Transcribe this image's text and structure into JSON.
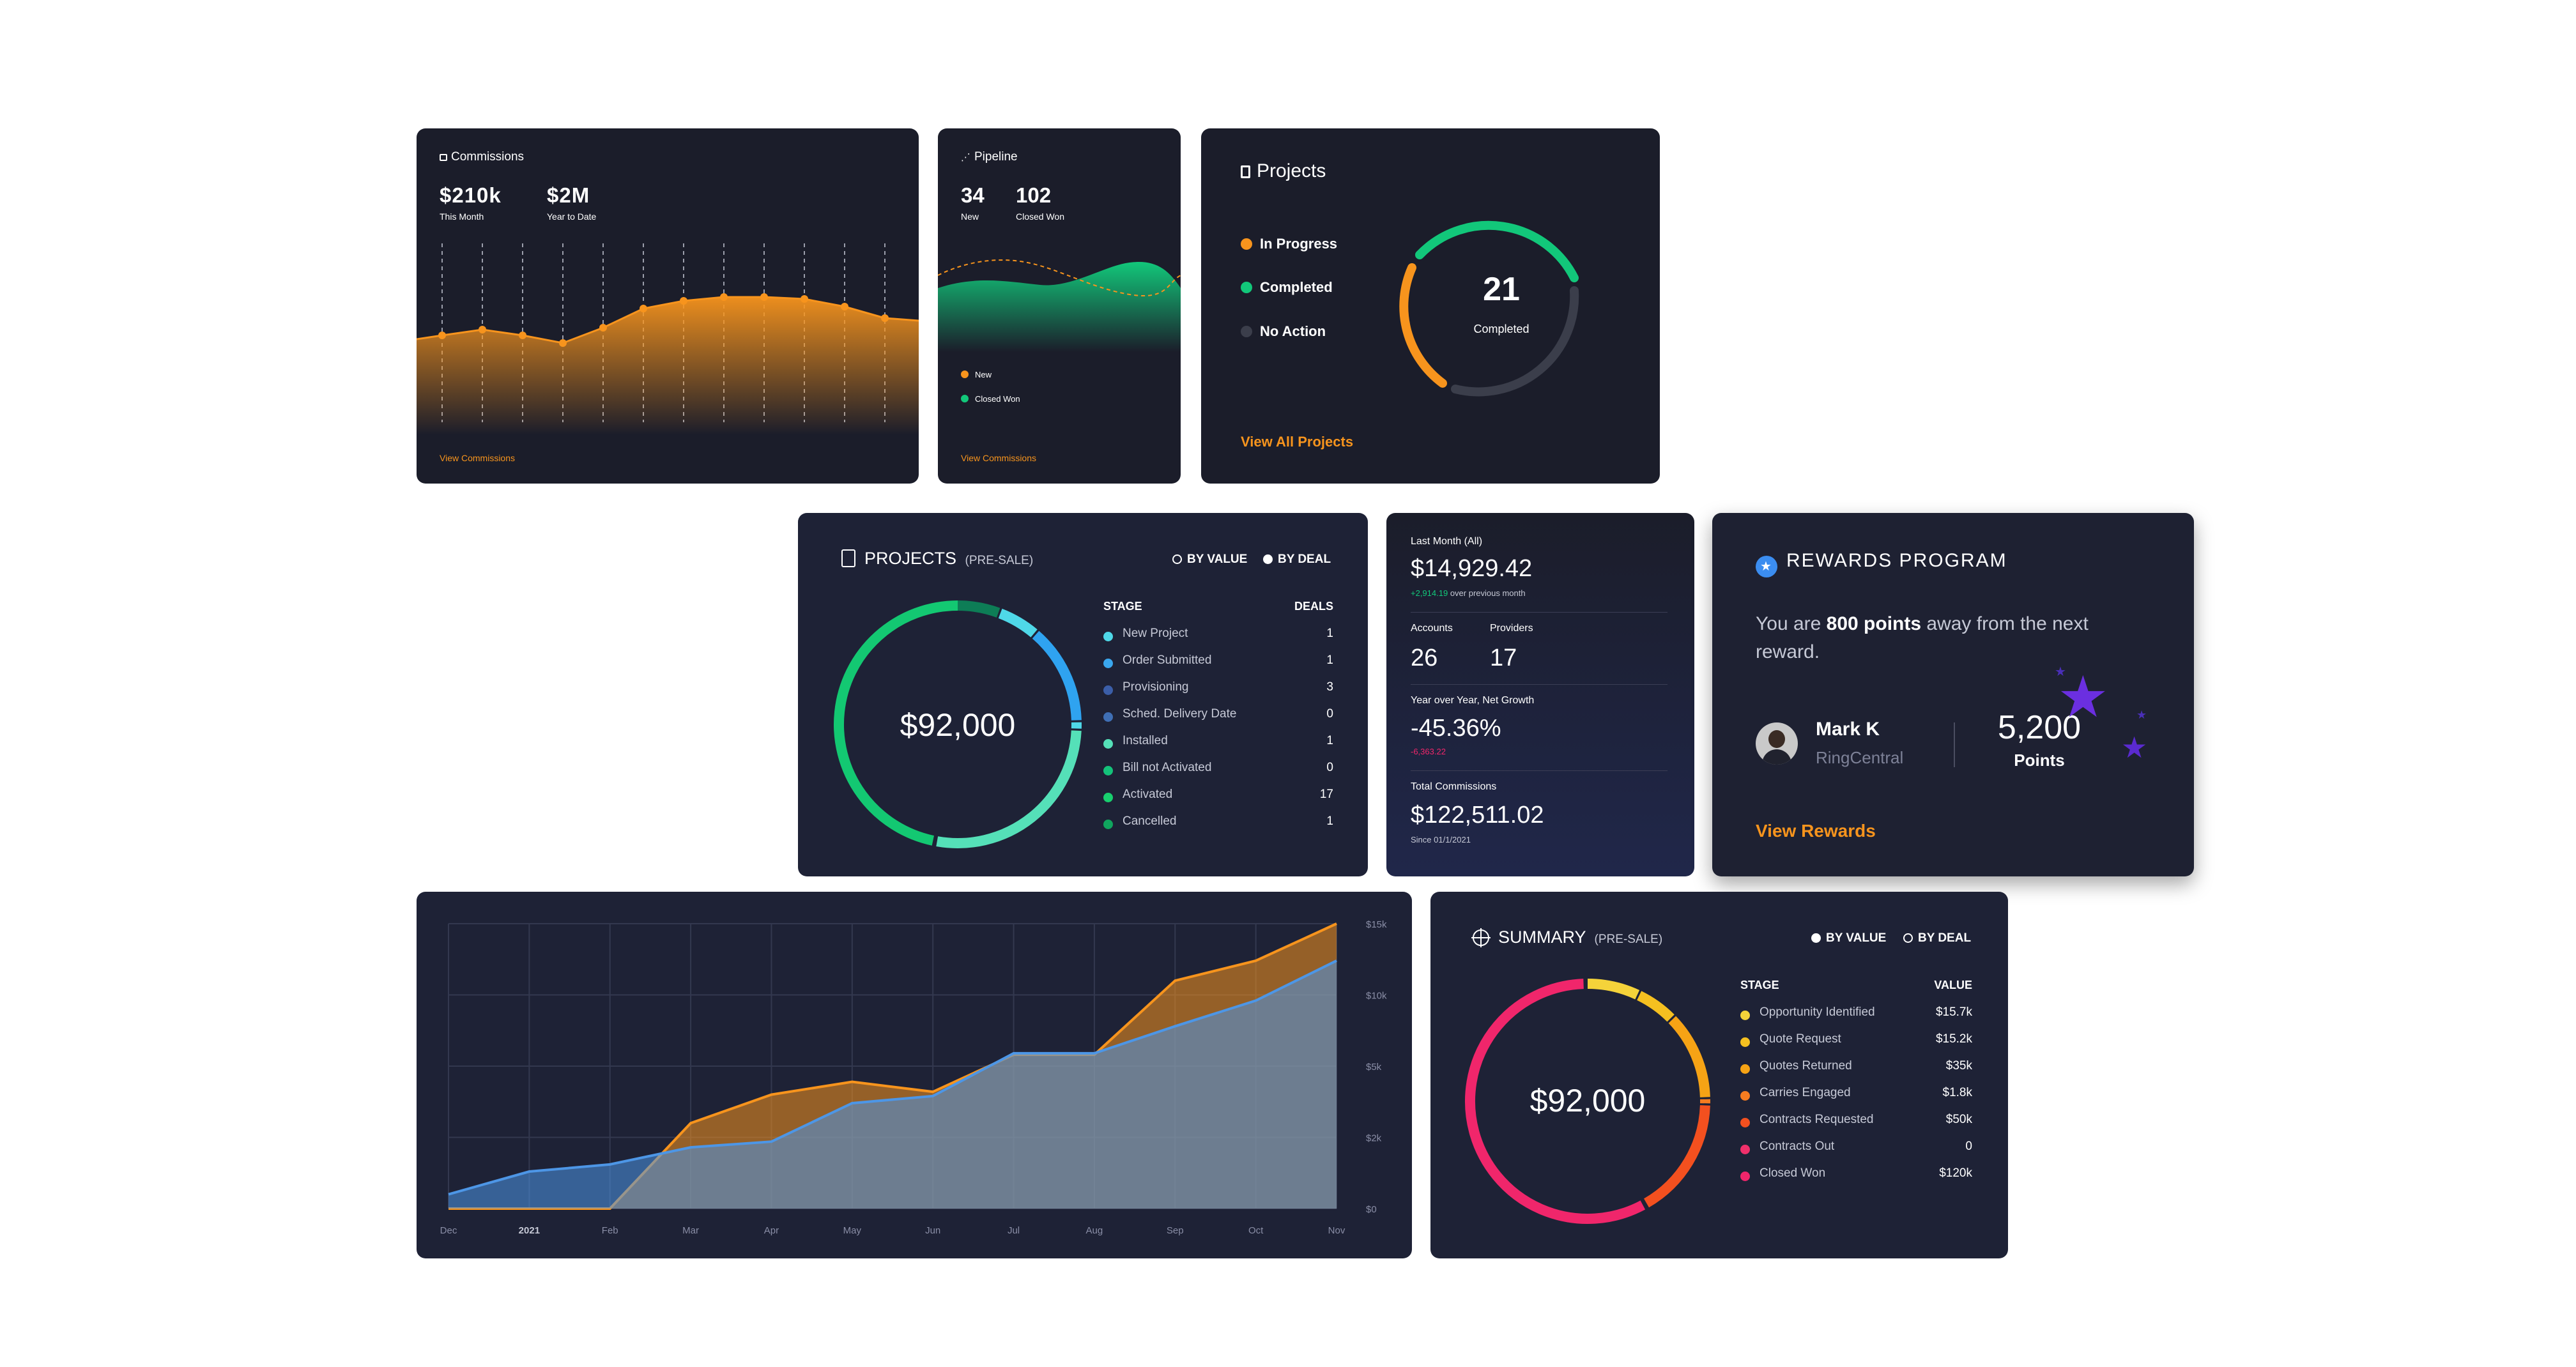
{
  "colors": {
    "card_bg": "#1b1d2a",
    "orange": "#f7941d",
    "green": "#12c77a",
    "gray": "#3b3e4b",
    "blue": "#4d96e6",
    "pink": "#f0266b"
  },
  "commissions": {
    "title": "Commissions",
    "icon": "briefcase-icon",
    "this_month_value": "$210k",
    "this_month_label": "This Month",
    "ytd_value": "$2M",
    "ytd_label": "Year to Date",
    "link": "View Commissions",
    "series": [
      0.48,
      0.45,
      0.48,
      0.52,
      0.44,
      0.34,
      0.3,
      0.28,
      0.28,
      0.29,
      0.33,
      0.39
    ]
  },
  "pipeline": {
    "title": "Pipeline",
    "icon": "pipeline-icon",
    "new_value": "34",
    "new_label": "New",
    "won_value": "102",
    "won_label": "Closed Won",
    "legend_new": "New",
    "legend_won": "Closed Won",
    "link": "View Commissions"
  },
  "projects_small": {
    "title": "Projects",
    "icon": "clipboard-icon",
    "legend": [
      {
        "label": "In Progress",
        "color": "#f7941d"
      },
      {
        "label": "Completed",
        "color": "#12c77a"
      },
      {
        "label": "No Action",
        "color": "#3b3e4b"
      }
    ],
    "center_value": "21",
    "center_label": "Completed",
    "link": "View All Projects"
  },
  "projects_presale": {
    "title": "PROJECTS",
    "subtitle": "(PRE-SALE)",
    "icon": "document-icon",
    "toggle_value": "BY VALUE",
    "toggle_deal": "BY DEAL",
    "col_stage": "STAGE",
    "col_deals": "DEALS",
    "center_value": "$92,000",
    "rows": [
      {
        "label": "New Project",
        "value": "1",
        "color": "#4fd8e8"
      },
      {
        "label": "Order Submitted",
        "value": "1",
        "color": "#3aa7ee"
      },
      {
        "label": "Provisioning",
        "value": "3",
        "color": "#3b5ea8"
      },
      {
        "label": "Sched. Delivery Date",
        "value": "0",
        "color": "#3f6fb5"
      },
      {
        "label": "Installed",
        "value": "1",
        "color": "#55e0b8"
      },
      {
        "label": "Bill not Activated",
        "value": "0",
        "color": "#14c27a"
      },
      {
        "label": "Activated",
        "value": "17",
        "color": "#18cf6e"
      },
      {
        "label": "Cancelled",
        "value": "1",
        "color": "#10a55e"
      }
    ]
  },
  "stats": {
    "last_month_label": "Last Month (All)",
    "last_month_value": "$14,929.42",
    "last_month_delta": "+2,914.19",
    "last_month_delta_note": "over previous month",
    "accounts_label": "Accounts",
    "accounts_value": "26",
    "providers_label": "Providers",
    "providers_value": "17",
    "growth_label": "Year over Year, Net Growth",
    "growth_value": "-45.36%",
    "growth_delta": "-6,363.22",
    "total_label": "Total Commissions",
    "total_value": "$122,511.02",
    "total_since": "Since 01/1/2021"
  },
  "rewards": {
    "title": "REWARDS PROGRAM",
    "icon": "star-badge-icon",
    "message_pre": "You are ",
    "message_bold": "800 points",
    "message_post": " away from the next reward.",
    "user_name": "Mark K",
    "user_company": "RingCentral",
    "points_value": "5,200",
    "points_label": "Points",
    "link": "View Rewards"
  },
  "area_chart": {
    "x_labels": [
      "Dec",
      "2021",
      "Feb",
      "Mar",
      "Apr",
      "May",
      "Jun",
      "Jul",
      "Aug",
      "Sep",
      "Oct",
      "Nov"
    ],
    "y_labels": [
      "$15k",
      "$10k",
      "$5k",
      "$2k",
      "$0"
    ],
    "series": [
      {
        "name": "orange",
        "color": "#f7941d",
        "values": [
          0.0,
          0.0,
          0.0,
          0.3,
          0.4,
          0.445,
          0.41,
          0.54,
          0.54,
          0.8,
          0.87,
          1.0
        ]
      },
      {
        "name": "blue",
        "color": "#4d96e6",
        "values": [
          0.05,
          0.13,
          0.155,
          0.215,
          0.235,
          0.37,
          0.395,
          0.545,
          0.545,
          0.64,
          0.73,
          0.87
        ]
      }
    ]
  },
  "summary": {
    "title": "SUMMARY",
    "subtitle": "(PRE-SALE)",
    "icon": "crosshair-icon",
    "toggle_value": "BY VALUE",
    "toggle_deal": "BY DEAL",
    "col_stage": "STAGE",
    "col_value": "VALUE",
    "center_value": "$92,000",
    "rows": [
      {
        "label": "Opportunity Identified",
        "value": "$15.7k",
        "color": "#f5d33a"
      },
      {
        "label": "Quote Request",
        "value": "$15.2k",
        "color": "#f5c020"
      },
      {
        "label": "Quotes Returned",
        "value": "$35k",
        "color": "#f6a315"
      },
      {
        "label": "Carries Engaged",
        "value": "$1.8k",
        "color": "#f57c20"
      },
      {
        "label": "Contracts Requested",
        "value": "$50k",
        "color": "#f3501f"
      },
      {
        "label": "Contracts Out",
        "value": "0",
        "color": "#f0306b"
      },
      {
        "label": "Closed Won",
        "value": "$120k",
        "color": "#f0266b"
      }
    ]
  }
}
